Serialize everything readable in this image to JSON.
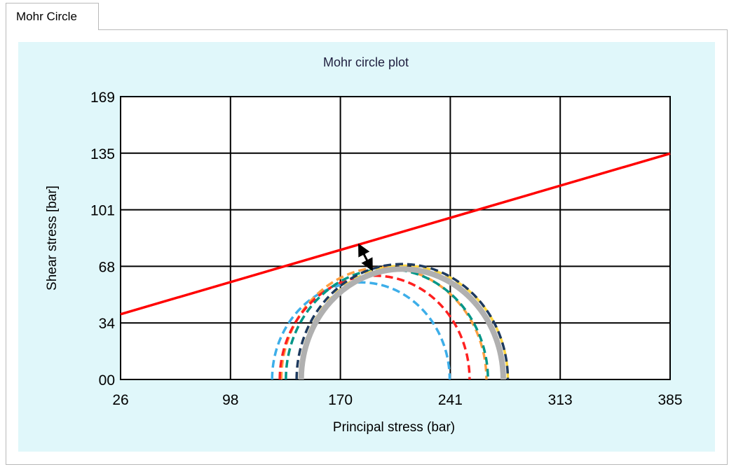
{
  "window": {
    "tab_label": "Mohr Circle"
  },
  "chart_data": {
    "type": "line",
    "title": "Mohr circle plot",
    "xlabel": "Principal stress (bar)",
    "ylabel": "Shear stress [bar]",
    "xlim": [
      26,
      385
    ],
    "ylim": [
      0,
      169
    ],
    "x_ticks": [
      "26",
      "98",
      "170",
      "241",
      "313",
      "385"
    ],
    "y_ticks": [
      "00",
      "34",
      "68",
      "101",
      "135",
      "169"
    ],
    "grid": true,
    "failure_envelope": {
      "x": [
        26,
        385
      ],
      "y": [
        39,
        135
      ],
      "color": "#ff0000"
    },
    "circles": [
      {
        "center": 183,
        "radius": 58,
        "color": "#3daee9",
        "style": "dashed"
      },
      {
        "center": 198,
        "radius": 67,
        "color": "#ff9f40",
        "style": "dashed"
      },
      {
        "center": 192,
        "radius": 62,
        "color": "#ff2020",
        "style": "dashed"
      },
      {
        "center": 200,
        "radius": 66,
        "color": "#009688",
        "style": "dashed"
      },
      {
        "center": 211,
        "radius": 68,
        "color": "#ffd740",
        "style": "dashed"
      },
      {
        "center": 210,
        "radius": 69,
        "color": "#1e3a5f",
        "style": "dashed"
      },
      {
        "center": 210,
        "radius": 66,
        "color": "#b0b0b0",
        "style": "solid"
      }
    ],
    "annotation": {
      "type": "double-arrow",
      "from": [
        182,
        80
      ],
      "to": [
        190,
        66
      ],
      "color": "#000000"
    }
  }
}
